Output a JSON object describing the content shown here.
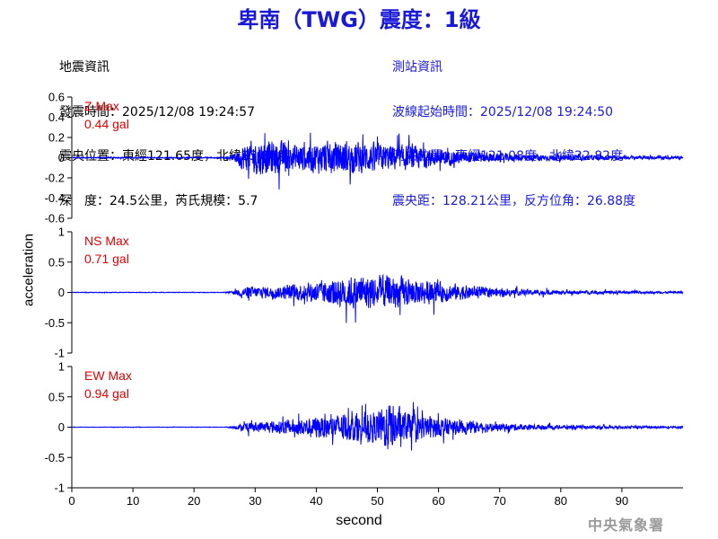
{
  "header": {
    "title": "卑南（TWG）震度：1級"
  },
  "quake_info": {
    "heading": "地震資訊",
    "time": "發震時間：2025/12/08 19:24:57",
    "location": "震央位置：東經121.65度，北緯23.85度",
    "depth_mag": "深　度：24.5公里，芮氏規模：5.7"
  },
  "station_info": {
    "heading": "測站資訊",
    "start_time": "波線起始時間：2025/12/08 19:24:50",
    "location": "測站位置：東經121.08度，北緯22.82度",
    "distance": "震央距：128.21公里，反方位角：26.88度"
  },
  "axis": {
    "ylabel": "acceleration",
    "xlabel": "second"
  },
  "logo_text": "中央氣象署",
  "colors": {
    "title": "#1a1ad6",
    "station_info": "#1a1ad6",
    "trace": "#0000ff",
    "max_label": "#e00000",
    "axis": "#000000"
  },
  "chart_data": [
    {
      "type": "line",
      "component": "Z",
      "max_label": "Z Max",
      "max_value": "0.44 gal",
      "peak_gal": 0.44,
      "xlim": [
        0,
        100
      ],
      "ylim": [
        -0.6,
        0.6
      ],
      "yticks": [
        0.6,
        0.4,
        0.2,
        0,
        -0.2,
        -0.4,
        -0.6
      ],
      "ytick_labels": [
        "0.6",
        "0.4",
        "0.2",
        "0",
        "-0.2",
        "-0.4",
        "-0.6"
      ],
      "envelope": {
        "t": [
          0,
          25,
          26,
          27,
          28,
          30,
          33,
          37,
          42,
          46,
          50,
          55,
          60,
          65,
          70,
          75,
          80,
          85,
          90,
          95,
          100
        ],
        "amp": [
          0.012,
          0.012,
          0.03,
          0.14,
          0.28,
          0.38,
          0.35,
          0.3,
          0.34,
          0.36,
          0.3,
          0.26,
          0.18,
          0.12,
          0.09,
          0.07,
          0.06,
          0.05,
          0.04,
          0.035,
          0.03
        ]
      }
    },
    {
      "type": "line",
      "component": "NS",
      "max_label": "NS Max",
      "max_value": "0.71 gal",
      "peak_gal": 0.71,
      "xlim": [
        0,
        100
      ],
      "ylim": [
        -1,
        1
      ],
      "yticks": [
        1,
        0.5,
        0,
        -0.5,
        -1
      ],
      "ytick_labels": [
        "1",
        "0.5",
        "0",
        "-0.5",
        "-1"
      ],
      "envelope": {
        "t": [
          0,
          25,
          26,
          27,
          28,
          30,
          33,
          37,
          42,
          46,
          50,
          55,
          60,
          65,
          70,
          75,
          80,
          85,
          90,
          95,
          100
        ],
        "amp": [
          0.01,
          0.01,
          0.03,
          0.1,
          0.2,
          0.22,
          0.2,
          0.3,
          0.45,
          0.6,
          0.62,
          0.5,
          0.36,
          0.24,
          0.14,
          0.1,
          0.07,
          0.06,
          0.05,
          0.04,
          0.035
        ]
      }
    },
    {
      "type": "line",
      "component": "EW",
      "max_label": "EW Max",
      "max_value": "0.94 gal",
      "peak_gal": 0.94,
      "xlim": [
        0,
        100
      ],
      "ylim": [
        -1,
        1
      ],
      "yticks": [
        1,
        0.5,
        0,
        -0.5,
        -1
      ],
      "ytick_labels": [
        "1",
        "0.5",
        "0",
        "-0.5",
        "-1"
      ],
      "xticks": [
        0,
        10,
        20,
        30,
        40,
        50,
        60,
        70,
        80,
        90
      ],
      "xtick_labels": [
        "0",
        "10",
        "20",
        "30",
        "40",
        "50",
        "60",
        "70",
        "80",
        "90"
      ],
      "envelope": {
        "t": [
          0,
          25,
          26,
          27,
          28,
          30,
          33,
          37,
          42,
          46,
          50,
          52,
          55,
          60,
          65,
          70,
          75,
          80,
          85,
          90,
          95,
          100
        ],
        "amp": [
          0.008,
          0.008,
          0.03,
          0.08,
          0.14,
          0.18,
          0.22,
          0.3,
          0.42,
          0.5,
          0.55,
          0.9,
          0.5,
          0.34,
          0.22,
          0.14,
          0.1,
          0.07,
          0.06,
          0.05,
          0.04,
          0.035
        ]
      }
    }
  ]
}
